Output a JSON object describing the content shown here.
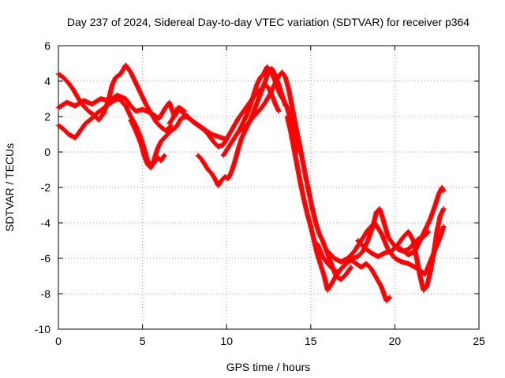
{
  "chart_data": {
    "type": "scatter",
    "title": "Day 237 of 2024, Sidereal Day-to-day VTEC variation (SDTVAR) for receiver p364",
    "xlabel": "GPS time / hours",
    "ylabel": "SDTVAR / TECUs",
    "xlim": [
      0,
      25
    ],
    "ylim": [
      -10,
      6
    ],
    "xticks": [
      0,
      5,
      10,
      15,
      20,
      25
    ],
    "yticks": [
      6,
      4,
      2,
      0,
      -2,
      -4,
      -6,
      -8,
      -10
    ],
    "xtick_labels": [
      "0",
      "5",
      "10",
      "15",
      "20",
      "25"
    ],
    "ytick_labels": [
      "6",
      "4",
      "2",
      "0",
      "-2",
      "-4",
      "-6",
      "-8",
      "-10"
    ],
    "grid": true,
    "marker": "plus",
    "color": "#ff0000",
    "series": [
      {
        "values_xy": [
          [
            0.0,
            2.5
          ],
          [
            0.5,
            2.8
          ],
          [
            1.0,
            2.6
          ],
          [
            1.5,
            2.9
          ],
          [
            2.0,
            2.7
          ],
          [
            2.5,
            3.0
          ],
          [
            3.0,
            2.9
          ],
          [
            3.5,
            3.2
          ],
          [
            4.0,
            3.0
          ],
          [
            4.3,
            2.6
          ],
          [
            4.6,
            2.3
          ],
          [
            5.0,
            2.4
          ],
          [
            5.5,
            2.2
          ],
          [
            5.8,
            2.0
          ],
          [
            6.0,
            1.9
          ],
          [
            6.3,
            2.4
          ],
          [
            6.6,
            2.8
          ],
          [
            6.9,
            2.0
          ],
          [
            7.2,
            2.5
          ],
          [
            7.5,
            2.3
          ]
        ]
      },
      {
        "values_xy": [
          [
            0.0,
            4.4
          ],
          [
            0.3,
            4.2
          ],
          [
            0.6,
            3.9
          ],
          [
            0.9,
            3.5
          ],
          [
            1.2,
            3.0
          ],
          [
            1.5,
            2.6
          ],
          [
            1.8,
            2.3
          ],
          [
            2.1,
            2.1
          ],
          [
            2.4,
            1.8
          ],
          [
            2.7,
            2.2
          ],
          [
            3.0,
            3.0
          ],
          [
            3.2,
            3.8
          ],
          [
            3.4,
            4.2
          ],
          [
            3.7,
            4.4
          ],
          [
            4.0,
            4.9
          ],
          [
            4.3,
            4.5
          ],
          [
            4.6,
            3.9
          ],
          [
            4.9,
            3.3
          ],
          [
            5.2,
            2.7
          ],
          [
            5.5,
            2.2
          ],
          [
            5.8,
            1.7
          ],
          [
            6.1,
            1.4
          ],
          [
            6.4,
            1.2
          ],
          [
            6.7,
            1.5
          ]
        ]
      },
      {
        "values_xy": [
          [
            0.0,
            1.5
          ],
          [
            0.3,
            1.3
          ],
          [
            0.6,
            1.0
          ],
          [
            1.0,
            0.8
          ],
          [
            1.3,
            1.2
          ],
          [
            1.6,
            1.6
          ],
          [
            2.0,
            1.9
          ],
          [
            2.3,
            2.2
          ],
          [
            2.6,
            2.4
          ],
          [
            3.0,
            2.7
          ],
          [
            3.3,
            2.9
          ],
          [
            3.6,
            3.0
          ],
          [
            4.0,
            2.6
          ],
          [
            4.3,
            2.0
          ],
          [
            4.6,
            1.5
          ],
          [
            4.9,
            0.8
          ],
          [
            5.1,
            0.2
          ],
          [
            5.3,
            -0.5
          ],
          [
            5.5,
            -0.8
          ],
          [
            5.7,
            -0.6
          ],
          [
            5.9,
            -0.3
          ],
          [
            6.1,
            -0.5
          ],
          [
            6.3,
            -0.2
          ]
        ]
      },
      {
        "values_xy": [
          [
            4.3,
            1.8
          ],
          [
            4.6,
            1.2
          ],
          [
            4.9,
            0.5
          ],
          [
            5.1,
            -0.2
          ],
          [
            5.3,
            -0.7
          ],
          [
            5.5,
            -0.9
          ],
          [
            5.7,
            -0.4
          ],
          [
            5.9,
            0.2
          ],
          [
            6.1,
            0.6
          ],
          [
            6.4,
            0.9
          ],
          [
            6.7,
            1.2
          ],
          [
            7.0,
            1.4
          ],
          [
            7.3,
            1.9
          ],
          [
            7.6,
            2.0
          ],
          [
            7.9,
            1.8
          ],
          [
            8.2,
            1.6
          ],
          [
            8.5,
            1.4
          ],
          [
            8.8,
            1.2
          ],
          [
            9.1,
            1.0
          ],
          [
            9.4,
            0.9
          ],
          [
            9.7,
            0.8
          ],
          [
            10.0,
            0.7
          ]
        ]
      },
      {
        "values_xy": [
          [
            6.6,
            1.6
          ],
          [
            6.8,
            1.9
          ],
          [
            7.1,
            2.5
          ],
          [
            7.4,
            2.2
          ],
          [
            7.7,
            2.0
          ],
          [
            8.0,
            1.7
          ],
          [
            8.3,
            1.5
          ],
          [
            8.6,
            1.3
          ],
          [
            8.9,
            1.0
          ],
          [
            9.2,
            0.6
          ],
          [
            9.5,
            0.3
          ],
          [
            9.8,
            0.4
          ],
          [
            10.1,
            0.9
          ],
          [
            10.4,
            1.4
          ],
          [
            10.7,
            1.9
          ],
          [
            11.0,
            2.3
          ],
          [
            11.3,
            2.7
          ],
          [
            11.6,
            3.1
          ],
          [
            11.9,
            3.4
          ],
          [
            12.1,
            3.6
          ],
          [
            12.3,
            3.8
          ],
          [
            12.5,
            3.6
          ],
          [
            12.7,
            3.2
          ],
          [
            12.9,
            2.7
          ],
          [
            13.1,
            2.3
          ]
        ]
      },
      {
        "values_xy": [
          [
            8.3,
            -0.2
          ],
          [
            8.5,
            -0.4
          ],
          [
            8.7,
            -0.7
          ],
          [
            8.9,
            -1.0
          ],
          [
            9.1,
            -1.2
          ],
          [
            9.3,
            -1.5
          ],
          [
            9.5,
            -1.9
          ],
          [
            9.7,
            -1.6
          ],
          [
            9.9,
            -1.4
          ],
          [
            10.1,
            -1.5
          ],
          [
            10.3,
            -1.1
          ],
          [
            10.5,
            -0.5
          ],
          [
            10.7,
            0.2
          ],
          [
            10.9,
            0.8
          ],
          [
            11.1,
            1.2
          ],
          [
            11.3,
            1.6
          ],
          [
            11.5,
            2.0
          ],
          [
            11.7,
            2.5
          ],
          [
            11.9,
            3.0
          ],
          [
            12.1,
            3.5
          ],
          [
            12.3,
            4.0
          ],
          [
            12.5,
            4.6
          ],
          [
            12.7,
            4.7
          ],
          [
            12.9,
            4.3
          ],
          [
            13.1,
            3.8
          ],
          [
            13.3,
            3.2
          ],
          [
            13.5,
            2.6
          ]
        ]
      },
      {
        "values_xy": [
          [
            9.8,
            -0.2
          ],
          [
            10.0,
            0.1
          ],
          [
            10.2,
            0.4
          ],
          [
            10.4,
            0.7
          ],
          [
            10.6,
            1.0
          ],
          [
            10.8,
            1.3
          ],
          [
            11.0,
            1.7
          ],
          [
            11.2,
            2.1
          ],
          [
            11.4,
            2.6
          ],
          [
            11.6,
            3.2
          ],
          [
            11.8,
            3.8
          ],
          [
            12.0,
            4.2
          ],
          [
            12.2,
            4.4
          ],
          [
            12.4,
            4.8
          ],
          [
            12.6,
            4.6
          ],
          [
            12.8,
            4.2
          ],
          [
            13.0,
            3.7
          ],
          [
            13.2,
            3.2
          ],
          [
            13.4,
            2.9
          ],
          [
            13.6,
            2.5
          ],
          [
            13.8,
            1.8
          ],
          [
            14.0,
            1.0
          ],
          [
            14.2,
            0.0
          ]
        ]
      },
      {
        "values_xy": [
          [
            10.8,
            1.2
          ],
          [
            11.2,
            1.5
          ],
          [
            11.6,
            2.0
          ],
          [
            12.0,
            2.4
          ],
          [
            12.3,
            2.8
          ],
          [
            12.6,
            3.3
          ],
          [
            12.9,
            3.9
          ],
          [
            13.1,
            4.3
          ],
          [
            13.3,
            4.5
          ],
          [
            13.5,
            4.2
          ],
          [
            13.7,
            3.5
          ],
          [
            13.9,
            2.5
          ],
          [
            14.1,
            1.5
          ],
          [
            14.3,
            0.6
          ],
          [
            14.5,
            -0.4
          ],
          [
            14.7,
            -1.4
          ],
          [
            14.9,
            -2.3
          ],
          [
            15.1,
            -3.2
          ],
          [
            15.3,
            -4.0
          ],
          [
            15.5,
            -4.6
          ],
          [
            15.7,
            -5.0
          ],
          [
            15.9,
            -5.5
          ],
          [
            16.1,
            -6.0
          ],
          [
            16.3,
            -6.5
          ],
          [
            16.5,
            -7.0
          ],
          [
            16.8,
            -7.2
          ],
          [
            17.1,
            -6.9
          ],
          [
            17.4,
            -6.5
          ]
        ]
      },
      {
        "values_xy": [
          [
            13.6,
            2.0
          ],
          [
            13.8,
            1.2
          ],
          [
            14.0,
            0.2
          ],
          [
            14.2,
            -0.8
          ],
          [
            14.4,
            -1.8
          ],
          [
            14.6,
            -2.7
          ],
          [
            14.8,
            -3.5
          ],
          [
            15.0,
            -4.2
          ],
          [
            15.2,
            -5.0
          ],
          [
            15.4,
            -5.8
          ],
          [
            15.6,
            -6.4
          ],
          [
            15.8,
            -7.0
          ],
          [
            16.0,
            -7.8
          ],
          [
            16.2,
            -7.5
          ],
          [
            16.5,
            -7.0
          ],
          [
            16.8,
            -6.6
          ],
          [
            17.1,
            -6.3
          ],
          [
            17.4,
            -6.1
          ],
          [
            17.7,
            -6.3
          ],
          [
            18.0,
            -6.5
          ],
          [
            18.3,
            -6.3
          ],
          [
            18.6,
            -6.6
          ],
          [
            18.9,
            -7.1
          ],
          [
            19.2,
            -7.6
          ],
          [
            19.5,
            -8.4
          ],
          [
            19.7,
            -8.2
          ]
        ]
      },
      {
        "values_xy": [
          [
            15.4,
            -5.2
          ],
          [
            15.7,
            -5.9
          ],
          [
            16.0,
            -6.3
          ],
          [
            16.3,
            -6.6
          ],
          [
            16.6,
            -6.8
          ],
          [
            16.9,
            -6.5
          ],
          [
            17.2,
            -6.2
          ],
          [
            17.5,
            -6.0
          ],
          [
            17.8,
            -5.9
          ],
          [
            18.1,
            -5.6
          ],
          [
            18.4,
            -5.0
          ],
          [
            18.7,
            -4.2
          ],
          [
            18.9,
            -3.4
          ],
          [
            19.1,
            -3.2
          ],
          [
            19.3,
            -3.8
          ],
          [
            19.6,
            -4.8
          ],
          [
            19.9,
            -5.2
          ],
          [
            20.2,
            -5.5
          ],
          [
            20.5,
            -5.6
          ],
          [
            20.8,
            -5.5
          ],
          [
            21.1,
            -5.2
          ],
          [
            21.4,
            -4.9
          ],
          [
            21.7,
            -4.8
          ],
          [
            22.0,
            -4.5
          ]
        ]
      },
      {
        "values_xy": [
          [
            16.0,
            -5.6
          ],
          [
            16.4,
            -6.0
          ],
          [
            16.8,
            -6.2
          ],
          [
            17.2,
            -6.0
          ],
          [
            17.6,
            -5.6
          ],
          [
            18.0,
            -5.0
          ],
          [
            18.4,
            -4.4
          ],
          [
            18.8,
            -4.0
          ],
          [
            19.2,
            -4.6
          ],
          [
            19.6,
            -5.5
          ],
          [
            20.0,
            -6.0
          ],
          [
            20.4,
            -6.2
          ],
          [
            20.8,
            -6.3
          ],
          [
            21.2,
            -6.5
          ],
          [
            21.5,
            -6.7
          ],
          [
            21.8,
            -6.9
          ],
          [
            22.1,
            -6.2
          ],
          [
            22.4,
            -5.5
          ],
          [
            22.7,
            -4.8
          ],
          [
            22.9,
            -4.2
          ]
        ]
      },
      {
        "values_xy": [
          [
            17.8,
            -5.0
          ],
          [
            18.2,
            -5.4
          ],
          [
            18.6,
            -5.7
          ],
          [
            19.0,
            -5.9
          ],
          [
            19.4,
            -5.7
          ],
          [
            19.8,
            -5.6
          ],
          [
            20.2,
            -5.2
          ],
          [
            20.5,
            -4.8
          ],
          [
            20.8,
            -4.5
          ],
          [
            21.1,
            -5.0
          ],
          [
            21.3,
            -6.0
          ],
          [
            21.5,
            -7.0
          ],
          [
            21.7,
            -7.8
          ],
          [
            21.9,
            -7.6
          ],
          [
            22.1,
            -6.8
          ],
          [
            22.3,
            -5.8
          ],
          [
            22.5,
            -4.5
          ],
          [
            22.7,
            -3.6
          ],
          [
            22.9,
            -3.2
          ]
        ]
      },
      {
        "values_xy": [
          [
            20.0,
            -5.3
          ],
          [
            20.4,
            -5.5
          ],
          [
            20.8,
            -5.8
          ],
          [
            21.2,
            -5.6
          ],
          [
            21.5,
            -5.0
          ],
          [
            21.8,
            -4.4
          ],
          [
            22.1,
            -3.8
          ],
          [
            22.4,
            -3.0
          ],
          [
            22.6,
            -2.4
          ],
          [
            22.8,
            -2.0
          ],
          [
            22.9,
            -2.2
          ]
        ]
      }
    ]
  }
}
